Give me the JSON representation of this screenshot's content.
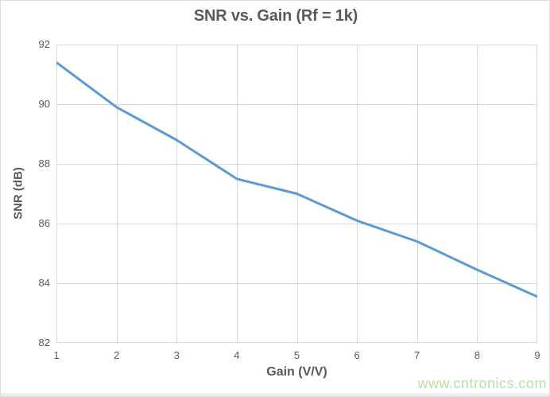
{
  "chart_data": {
    "type": "line",
    "title": "SNR vs. Gain (Rf = 1k)",
    "xlabel": "Gain (V/V)",
    "ylabel": "SNR (dB)",
    "x": [
      1,
      2,
      3,
      4,
      5,
      6,
      7,
      8,
      9
    ],
    "series": [
      {
        "name": "SNR",
        "values": [
          91.4,
          89.9,
          88.8,
          87.5,
          87.0,
          86.1,
          85.4,
          84.45,
          83.55
        ]
      }
    ],
    "xlim": [
      1,
      9
    ],
    "ylim": [
      82,
      92
    ],
    "x_ticks": [
      1,
      2,
      3,
      4,
      5,
      6,
      7,
      8,
      9
    ],
    "y_ticks": [
      92,
      90,
      88,
      86,
      84,
      82
    ],
    "grid": true,
    "legend": false,
    "line_color": "#5B9BD5",
    "grid_color": "#D9D9D9",
    "text_color": "#595959"
  },
  "watermark": {
    "text": "www.cntronics.com",
    "color": "#B5E3A8"
  }
}
